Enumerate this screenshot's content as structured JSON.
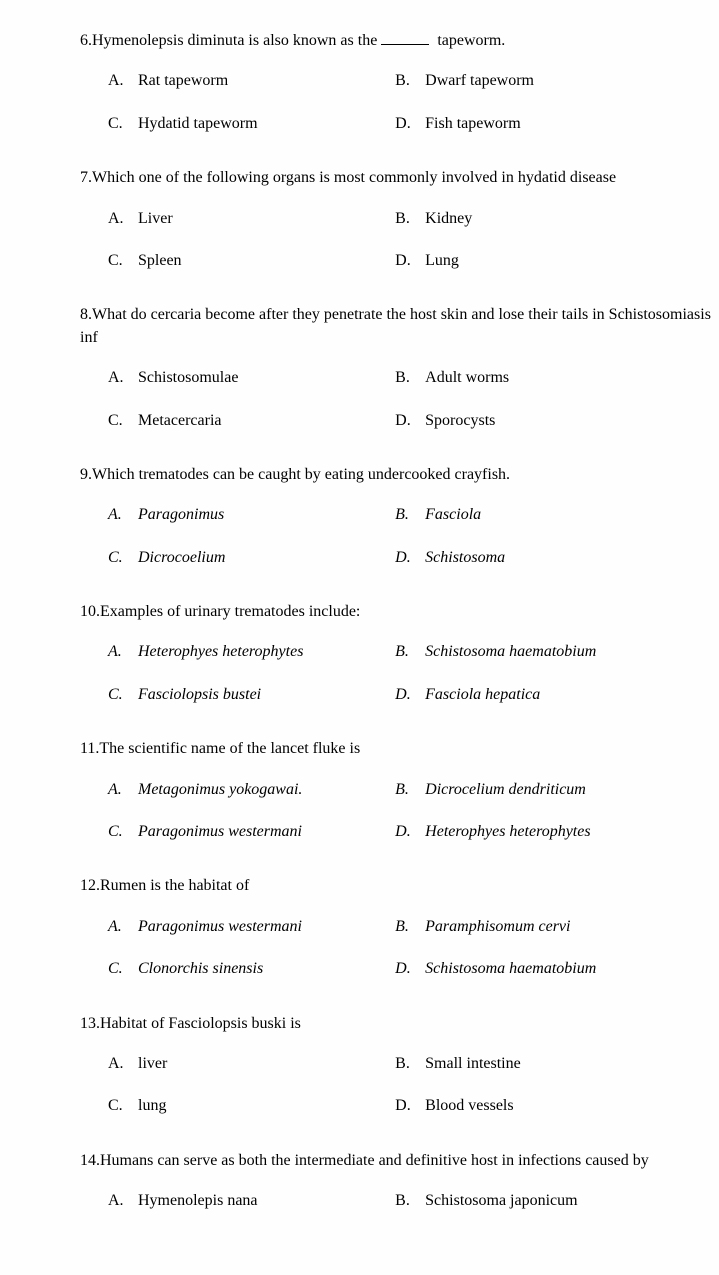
{
  "questions": [
    {
      "num": "6.",
      "text_before": "Hymenolepsis diminuta is also known as the",
      "text_after": " tapeworm.",
      "has_blank": true,
      "italic": false,
      "options": [
        {
          "letter": "A.",
          "text": "Rat tapeworm",
          "italic": false
        },
        {
          "letter": "B.",
          "text": "Dwarf tapeworm",
          "italic": false
        },
        {
          "letter": "C.",
          "text": "Hydatid tapeworm",
          "italic": false
        },
        {
          "letter": "D.",
          "text": "Fish tapeworm",
          "italic": false
        }
      ]
    },
    {
      "num": "7.",
      "text_before": "Which one of the following organs is most commonly involved in hydatid disease",
      "text_after": "",
      "has_blank": false,
      "italic": false,
      "options": [
        {
          "letter": "A.",
          "text": "Liver",
          "italic": false
        },
        {
          "letter": "B.",
          "text": "Kidney",
          "italic": false
        },
        {
          "letter": "C.",
          "text": "Spleen",
          "italic": false
        },
        {
          "letter": "D.",
          "text": "Lung",
          "italic": false
        }
      ]
    },
    {
      "num": "8.",
      "text_before": "What do cercaria become after they penetrate the host skin and lose their tails in Schistosomiasis inf",
      "text_after": "",
      "has_blank": false,
      "italic": false,
      "options": [
        {
          "letter": "A.",
          "text": "Schistosomulae",
          "italic": false
        },
        {
          "letter": "B.",
          "text": "Adult worms",
          "italic": false
        },
        {
          "letter": "C.",
          "text": "Metacercaria",
          "italic": false
        },
        {
          "letter": "D.",
          "text": "Sporocysts",
          "italic": false
        }
      ]
    },
    {
      "num": "9.",
      "text_before": "Which trematodes can be caught by eating undercooked  crayfish.",
      "text_after": "",
      "has_blank": false,
      "italic": false,
      "options": [
        {
          "letter": "A.",
          "text": "Paragonimus",
          "italic": true
        },
        {
          "letter": "B.",
          "text": "Fasciola",
          "italic": true
        },
        {
          "letter": "C.",
          "text": "Dicrocoelium",
          "italic": true
        },
        {
          "letter": "D.",
          "text": "Schistosoma",
          "italic": true
        }
      ]
    },
    {
      "num": "10.",
      "text_before": "Examples of urinary trematodes include:",
      "text_after": "",
      "has_blank": false,
      "italic": false,
      "options": [
        {
          "letter": "A.",
          "text": "Heterophyes heterophytes",
          "italic": true
        },
        {
          "letter": "B.",
          "text": "Schistosoma haematobium",
          "italic": true
        },
        {
          "letter": "C.",
          "text": "Fasciolopsis bustei",
          "italic": true
        },
        {
          "letter": "D.",
          "text": "Fasciola hepatica",
          "italic": true
        }
      ]
    },
    {
      "num": "11.",
      "text_before": "The scientific name of the lancet fluke is",
      "text_after": "",
      "has_blank": false,
      "italic": false,
      "options": [
        {
          "letter": "A.",
          "text": "Metagonimus yokogawai.",
          "italic": true
        },
        {
          "letter": "B.",
          "text": "Dicrocelium dendriticum",
          "italic": true
        },
        {
          "letter": "C.",
          "text": "Paragonimus westermani",
          "italic": true
        },
        {
          "letter": "D.",
          "text": "Heterophyes heterophytes",
          "italic": true
        }
      ]
    },
    {
      "num": "12.",
      "text_before": "Rumen  is the habitat of",
      "text_after": "",
      "has_blank": false,
      "italic": false,
      "options": [
        {
          "letter": "A.",
          "text": "Paragonimus westermani",
          "italic": true
        },
        {
          "letter": "B.",
          "text": "Paramphisomum cervi",
          "italic": true
        },
        {
          "letter": "C.",
          "text": "Clonorchis sinensis",
          "italic": true
        },
        {
          "letter": "D.",
          "text": "Schistosoma haematobium",
          "italic": true
        }
      ]
    },
    {
      "num": "13.",
      "text_before": "Habitat of Fasciolopsis buski is",
      "text_after": "",
      "has_blank": false,
      "italic": false,
      "options": [
        {
          "letter": "A.",
          "text": "liver",
          "italic": false
        },
        {
          "letter": "B.",
          "text": "Small intestine",
          "italic": false
        },
        {
          "letter": "C.",
          "text": "lung",
          "italic": false
        },
        {
          "letter": "D.",
          "text": "Blood vessels",
          "italic": false
        }
      ]
    },
    {
      "num": "14.",
      "text_before": "Humans can serve as both the intermediate and definitive host in infections caused by",
      "text_after": "",
      "has_blank": false,
      "italic": false,
      "options": [
        {
          "letter": "A.",
          "text": "Hymenolepis nana",
          "italic": false
        },
        {
          "letter": "B.",
          "text": "Schistosoma japonicum",
          "italic": false
        }
      ]
    }
  ]
}
